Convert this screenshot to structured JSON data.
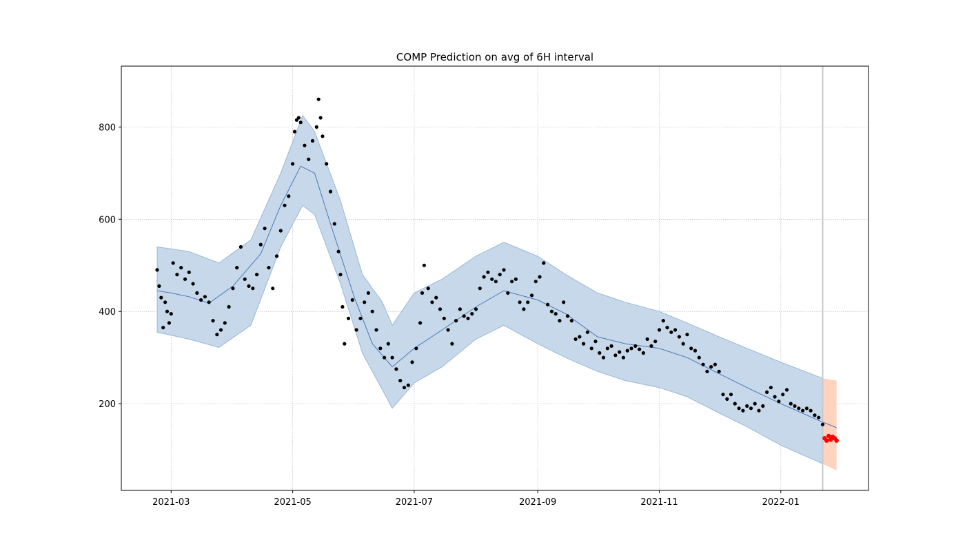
{
  "chart_data": {
    "type": "line",
    "title": "COMP Prediction on avg of 6H interval",
    "xlabel": "",
    "ylabel": "",
    "x_axis": {
      "type": "date",
      "range": [
        "2021-02-04",
        "2022-02-14"
      ],
      "ticks": [
        "2021-03-01",
        "2021-05-01",
        "2021-07-01",
        "2021-09-01",
        "2021-11-01",
        "2022-01-01"
      ],
      "tick_labels": [
        "2021-03",
        "2021-05",
        "2021-07",
        "2021-09",
        "2021-11",
        "2022-01"
      ]
    },
    "y_axis": {
      "range": [
        12,
        932
      ],
      "ticks": [
        200,
        400,
        600,
        800
      ],
      "tick_labels": [
        "200",
        "400",
        "600",
        "800"
      ]
    },
    "grid": true,
    "forecast_start": "2022-01-22",
    "colors": {
      "fit_line": "#4a78b4",
      "fit_band": "#c6d8e9",
      "fit_band_edge": "#9ab7d3",
      "actual_points": "#000000",
      "forecast_band": "#fdd2be",
      "forecast_points": "#ff0000",
      "forecast_divider": "#c8c8c8"
    },
    "series": [
      {
        "kind": "trend_line",
        "points": [
          [
            "2021-02-22",
            445
          ],
          [
            "2021-03-01",
            440
          ],
          [
            "2021-03-10",
            432
          ],
          [
            "2021-03-20",
            418
          ],
          [
            "2021-04-01",
            455
          ],
          [
            "2021-04-15",
            525
          ],
          [
            "2021-04-25",
            630
          ],
          [
            "2021-05-05",
            715
          ],
          [
            "2021-05-12",
            700
          ],
          [
            "2021-05-20",
            590
          ],
          [
            "2021-06-01",
            430
          ],
          [
            "2021-06-10",
            330
          ],
          [
            "2021-06-20",
            280
          ],
          [
            "2021-07-01",
            320
          ],
          [
            "2021-07-15",
            360
          ],
          [
            "2021-08-01",
            410
          ],
          [
            "2021-08-15",
            445
          ],
          [
            "2021-09-01",
            425
          ],
          [
            "2021-09-15",
            395
          ],
          [
            "2021-10-01",
            345
          ],
          [
            "2021-10-15",
            330
          ],
          [
            "2021-11-01",
            320
          ],
          [
            "2021-11-15",
            300
          ],
          [
            "2021-12-01",
            265
          ],
          [
            "2021-12-15",
            235
          ],
          [
            "2022-01-01",
            200
          ],
          [
            "2022-01-22",
            160
          ],
          [
            "2022-01-29",
            148
          ]
        ]
      },
      {
        "kind": "uncertainty_band",
        "upper": [
          [
            "2021-02-22",
            540
          ],
          [
            "2021-03-10",
            530
          ],
          [
            "2021-03-25",
            505
          ],
          [
            "2021-04-10",
            555
          ],
          [
            "2021-04-25",
            700
          ],
          [
            "2021-05-06",
            825
          ],
          [
            "2021-05-12",
            790
          ],
          [
            "2021-05-25",
            640
          ],
          [
            "2021-06-05",
            480
          ],
          [
            "2021-06-15",
            420
          ],
          [
            "2021-06-20",
            370
          ],
          [
            "2021-07-01",
            440
          ],
          [
            "2021-07-15",
            470
          ],
          [
            "2021-08-01",
            520
          ],
          [
            "2021-08-15",
            550
          ],
          [
            "2021-09-01",
            520
          ],
          [
            "2021-09-15",
            480
          ],
          [
            "2021-10-01",
            440
          ],
          [
            "2021-10-15",
            420
          ],
          [
            "2021-11-01",
            400
          ],
          [
            "2021-11-15",
            375
          ],
          [
            "2021-12-01",
            345
          ],
          [
            "2021-12-15",
            320
          ],
          [
            "2022-01-01",
            290
          ],
          [
            "2022-01-22",
            255
          ]
        ],
        "lower": [
          [
            "2021-02-22",
            355
          ],
          [
            "2021-03-10",
            340
          ],
          [
            "2021-03-25",
            322
          ],
          [
            "2021-04-10",
            370
          ],
          [
            "2021-04-25",
            540
          ],
          [
            "2021-05-06",
            630
          ],
          [
            "2021-05-12",
            610
          ],
          [
            "2021-05-25",
            460
          ],
          [
            "2021-06-05",
            310
          ],
          [
            "2021-06-15",
            230
          ],
          [
            "2021-06-20",
            190
          ],
          [
            "2021-07-01",
            245
          ],
          [
            "2021-07-15",
            280
          ],
          [
            "2021-08-01",
            340
          ],
          [
            "2021-08-15",
            370
          ],
          [
            "2021-09-01",
            330
          ],
          [
            "2021-09-15",
            300
          ],
          [
            "2021-10-01",
            270
          ],
          [
            "2021-10-15",
            250
          ],
          [
            "2021-11-01",
            235
          ],
          [
            "2021-11-15",
            215
          ],
          [
            "2021-12-01",
            180
          ],
          [
            "2021-12-15",
            150
          ],
          [
            "2022-01-01",
            110
          ],
          [
            "2022-01-22",
            70
          ]
        ]
      },
      {
        "kind": "forecast_band",
        "upper": [
          [
            "2022-01-22",
            255
          ],
          [
            "2022-01-29",
            250
          ]
        ],
        "lower": [
          [
            "2022-01-22",
            70
          ],
          [
            "2022-01-29",
            55
          ]
        ]
      },
      {
        "kind": "actual",
        "points": [
          [
            "2021-02-22",
            490
          ],
          [
            "2021-02-23",
            455
          ],
          [
            "2021-02-24",
            430
          ],
          [
            "2021-02-25",
            365
          ],
          [
            "2021-02-26",
            420
          ],
          [
            "2021-02-27",
            400
          ],
          [
            "2021-02-28",
            375
          ],
          [
            "2021-03-01",
            395
          ],
          [
            "2021-03-02",
            505
          ],
          [
            "2021-03-04",
            480
          ],
          [
            "2021-03-06",
            495
          ],
          [
            "2021-03-08",
            470
          ],
          [
            "2021-03-10",
            485
          ],
          [
            "2021-03-12",
            460
          ],
          [
            "2021-03-14",
            440
          ],
          [
            "2021-03-16",
            425
          ],
          [
            "2021-03-18",
            432
          ],
          [
            "2021-03-20",
            420
          ],
          [
            "2021-03-22",
            380
          ],
          [
            "2021-03-24",
            350
          ],
          [
            "2021-03-26",
            360
          ],
          [
            "2021-03-28",
            375
          ],
          [
            "2021-03-30",
            410
          ],
          [
            "2021-04-01",
            450
          ],
          [
            "2021-04-03",
            495
          ],
          [
            "2021-04-05",
            540
          ],
          [
            "2021-04-07",
            470
          ],
          [
            "2021-04-09",
            455
          ],
          [
            "2021-04-11",
            450
          ],
          [
            "2021-04-13",
            480
          ],
          [
            "2021-04-15",
            545
          ],
          [
            "2021-04-17",
            580
          ],
          [
            "2021-04-19",
            495
          ],
          [
            "2021-04-21",
            450
          ],
          [
            "2021-04-23",
            520
          ],
          [
            "2021-04-25",
            575
          ],
          [
            "2021-04-27",
            630
          ],
          [
            "2021-04-29",
            650
          ],
          [
            "2021-05-01",
            720
          ],
          [
            "2021-05-02",
            790
          ],
          [
            "2021-05-03",
            815
          ],
          [
            "2021-05-04",
            820
          ],
          [
            "2021-05-05",
            810
          ],
          [
            "2021-05-07",
            760
          ],
          [
            "2021-05-09",
            730
          ],
          [
            "2021-05-11",
            770
          ],
          [
            "2021-05-13",
            800
          ],
          [
            "2021-05-14",
            860
          ],
          [
            "2021-05-15",
            820
          ],
          [
            "2021-05-16",
            780
          ],
          [
            "2021-05-18",
            720
          ],
          [
            "2021-05-20",
            660
          ],
          [
            "2021-05-22",
            590
          ],
          [
            "2021-05-24",
            530
          ],
          [
            "2021-05-25",
            480
          ],
          [
            "2021-05-26",
            410
          ],
          [
            "2021-05-27",
            330
          ],
          [
            "2021-05-29",
            385
          ],
          [
            "2021-05-31",
            425
          ],
          [
            "2021-06-02",
            360
          ],
          [
            "2021-06-04",
            385
          ],
          [
            "2021-06-06",
            420
          ],
          [
            "2021-06-08",
            440
          ],
          [
            "2021-06-10",
            400
          ],
          [
            "2021-06-12",
            360
          ],
          [
            "2021-06-14",
            320
          ],
          [
            "2021-06-16",
            300
          ],
          [
            "2021-06-18",
            330
          ],
          [
            "2021-06-20",
            300
          ],
          [
            "2021-06-22",
            275
          ],
          [
            "2021-06-24",
            250
          ],
          [
            "2021-06-26",
            235
          ],
          [
            "2021-06-28",
            240
          ],
          [
            "2021-06-30",
            290
          ],
          [
            "2021-07-02",
            320
          ],
          [
            "2021-07-04",
            375
          ],
          [
            "2021-07-05",
            440
          ],
          [
            "2021-07-06",
            500
          ],
          [
            "2021-07-08",
            450
          ],
          [
            "2021-07-10",
            420
          ],
          [
            "2021-07-12",
            430
          ],
          [
            "2021-07-14",
            405
          ],
          [
            "2021-07-16",
            385
          ],
          [
            "2021-07-18",
            360
          ],
          [
            "2021-07-20",
            330
          ],
          [
            "2021-07-22",
            380
          ],
          [
            "2021-07-24",
            405
          ],
          [
            "2021-07-26",
            390
          ],
          [
            "2021-07-28",
            385
          ],
          [
            "2021-07-30",
            395
          ],
          [
            "2021-08-01",
            405
          ],
          [
            "2021-08-03",
            450
          ],
          [
            "2021-08-05",
            475
          ],
          [
            "2021-08-07",
            485
          ],
          [
            "2021-08-09",
            470
          ],
          [
            "2021-08-11",
            465
          ],
          [
            "2021-08-13",
            480
          ],
          [
            "2021-08-15",
            490
          ],
          [
            "2021-08-17",
            440
          ],
          [
            "2021-08-19",
            465
          ],
          [
            "2021-08-21",
            470
          ],
          [
            "2021-08-23",
            420
          ],
          [
            "2021-08-25",
            405
          ],
          [
            "2021-08-27",
            420
          ],
          [
            "2021-08-29",
            435
          ],
          [
            "2021-08-31",
            465
          ],
          [
            "2021-09-02",
            475
          ],
          [
            "2021-09-04",
            505
          ],
          [
            "2021-09-06",
            415
          ],
          [
            "2021-09-08",
            400
          ],
          [
            "2021-09-10",
            395
          ],
          [
            "2021-09-12",
            380
          ],
          [
            "2021-09-14",
            420
          ],
          [
            "2021-09-16",
            390
          ],
          [
            "2021-09-18",
            380
          ],
          [
            "2021-09-20",
            340
          ],
          [
            "2021-09-22",
            345
          ],
          [
            "2021-09-24",
            330
          ],
          [
            "2021-09-26",
            355
          ],
          [
            "2021-09-28",
            320
          ],
          [
            "2021-09-30",
            335
          ],
          [
            "2021-10-02",
            310
          ],
          [
            "2021-10-04",
            300
          ],
          [
            "2021-10-06",
            320
          ],
          [
            "2021-10-08",
            325
          ],
          [
            "2021-10-10",
            305
          ],
          [
            "2021-10-12",
            312
          ],
          [
            "2021-10-14",
            300
          ],
          [
            "2021-10-16",
            315
          ],
          [
            "2021-10-18",
            320
          ],
          [
            "2021-10-20",
            325
          ],
          [
            "2021-10-22",
            318
          ],
          [
            "2021-10-24",
            310
          ],
          [
            "2021-10-26",
            340
          ],
          [
            "2021-10-28",
            325
          ],
          [
            "2021-10-30",
            335
          ],
          [
            "2021-11-01",
            360
          ],
          [
            "2021-11-03",
            380
          ],
          [
            "2021-11-05",
            365
          ],
          [
            "2021-11-07",
            355
          ],
          [
            "2021-11-09",
            360
          ],
          [
            "2021-11-11",
            345
          ],
          [
            "2021-11-13",
            330
          ],
          [
            "2021-11-15",
            350
          ],
          [
            "2021-11-17",
            320
          ],
          [
            "2021-11-19",
            315
          ],
          [
            "2021-11-21",
            300
          ],
          [
            "2021-11-23",
            285
          ],
          [
            "2021-11-25",
            270
          ],
          [
            "2021-11-27",
            280
          ],
          [
            "2021-11-29",
            285
          ],
          [
            "2021-12-01",
            270
          ],
          [
            "2021-12-03",
            220
          ],
          [
            "2021-12-05",
            210
          ],
          [
            "2021-12-07",
            220
          ],
          [
            "2021-12-09",
            200
          ],
          [
            "2021-12-11",
            190
          ],
          [
            "2021-12-13",
            185
          ],
          [
            "2021-12-15",
            195
          ],
          [
            "2021-12-17",
            190
          ],
          [
            "2021-12-19",
            200
          ],
          [
            "2021-12-21",
            185
          ],
          [
            "2021-12-23",
            195
          ],
          [
            "2021-12-25",
            225
          ],
          [
            "2021-12-27",
            235
          ],
          [
            "2021-12-29",
            215
          ],
          [
            "2021-12-31",
            205
          ],
          [
            "2022-01-02",
            220
          ],
          [
            "2022-01-04",
            230
          ],
          [
            "2022-01-06",
            200
          ],
          [
            "2022-01-08",
            195
          ],
          [
            "2022-01-10",
            190
          ],
          [
            "2022-01-12",
            185
          ],
          [
            "2022-01-14",
            190
          ],
          [
            "2022-01-16",
            185
          ],
          [
            "2022-01-18",
            175
          ],
          [
            "2022-01-20",
            170
          ],
          [
            "2022-01-22",
            155
          ]
        ]
      },
      {
        "kind": "forecast_actual",
        "points": [
          [
            "2022-01-23",
            125
          ],
          [
            "2022-01-24",
            120
          ],
          [
            "2022-01-25",
            130
          ],
          [
            "2022-01-26",
            122
          ],
          [
            "2022-01-27",
            128
          ],
          [
            "2022-01-28",
            125
          ],
          [
            "2022-01-29",
            120
          ]
        ]
      }
    ]
  }
}
